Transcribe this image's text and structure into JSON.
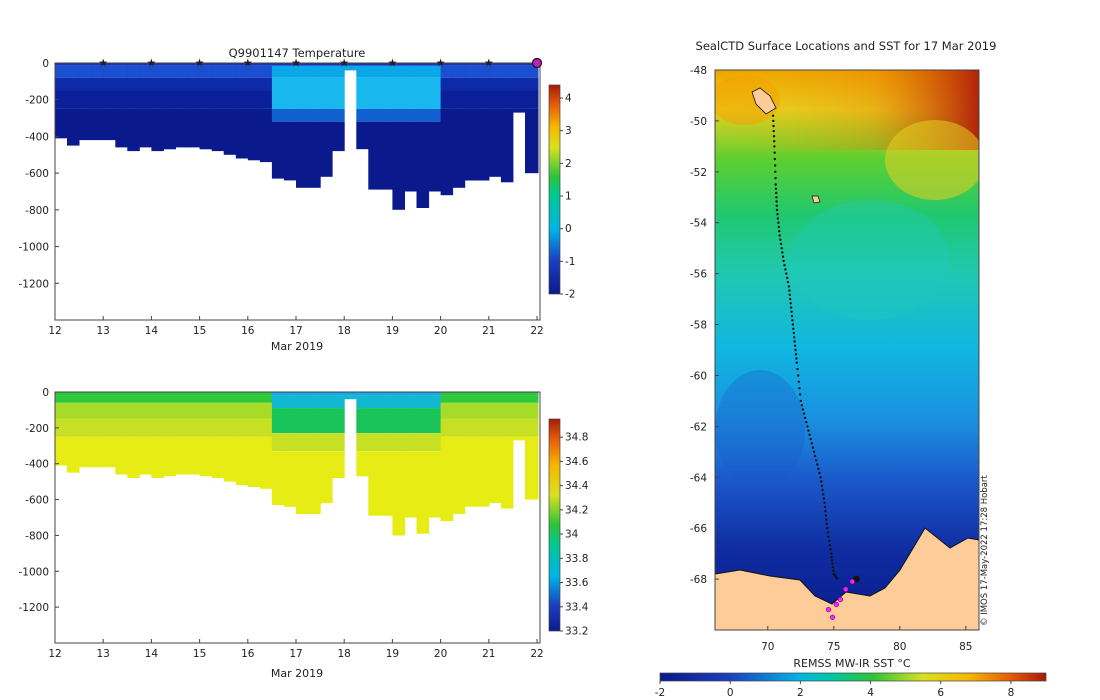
{
  "chart_data": [
    {
      "type": "heatmap",
      "title": "Q9901147  Temperature",
      "xlabel": "Mar 2019",
      "xlim": [
        12,
        22
      ],
      "xticks": [
        "12",
        "13",
        "14",
        "15",
        "16",
        "17",
        "18",
        "19",
        "20",
        "21",
        "22"
      ],
      "ylim": [
        -1400,
        0
      ],
      "yticks": [
        "0",
        "-200",
        "-400",
        "-600",
        "-800",
        "-1000",
        "-1200"
      ],
      "colorbar": {
        "min": -2,
        "max": 4.4,
        "ticks": [
          "4",
          "3",
          "2",
          "1",
          "0",
          "-1",
          "-2"
        ]
      },
      "profile_marker_days": [
        13,
        14,
        15,
        16,
        17,
        18,
        19,
        20,
        21,
        22
      ],
      "profiles": {
        "day": [
          12.0,
          12.25,
          12.5,
          12.75,
          13.0,
          13.25,
          13.5,
          13.75,
          14.0,
          14.25,
          14.5,
          14.75,
          15.0,
          15.25,
          15.5,
          15.75,
          16.0,
          16.25,
          16.5,
          16.75,
          17.0,
          17.25,
          17.5,
          17.75,
          18.0,
          18.25,
          18.5,
          18.75,
          19.0,
          19.25,
          19.5,
          19.75,
          20.0,
          20.25,
          20.5,
          20.75,
          21.0,
          21.25,
          21.5,
          21.75,
          22.0
        ],
        "max_depth": [
          410,
          450,
          420,
          420,
          420,
          460,
          480,
          460,
          480,
          470,
          460,
          460,
          470,
          480,
          500,
          520,
          530,
          540,
          630,
          640,
          680,
          680,
          620,
          480,
          40,
          470,
          690,
          690,
          800,
          700,
          790,
          700,
          720,
          680,
          640,
          640,
          620,
          650,
          270,
          600,
          600
        ]
      }
    },
    {
      "type": "heatmap",
      "title": "",
      "xlabel": "Mar 2019",
      "xlim": [
        12,
        22
      ],
      "xticks": [
        "12",
        "13",
        "14",
        "15",
        "16",
        "17",
        "18",
        "19",
        "20",
        "21",
        "22"
      ],
      "ylim": [
        -1400,
        0
      ],
      "yticks": [
        "0",
        "-200",
        "-400",
        "-600",
        "-800",
        "-1000",
        "-1200"
      ],
      "colorbar": {
        "min": 33.2,
        "max": 34.95,
        "ticks": [
          "34.8",
          "34.6",
          "34.4",
          "34.2",
          "34",
          "33.8",
          "33.6",
          "33.4",
          "33.2"
        ]
      }
    },
    {
      "type": "map",
      "title": "SealCTD Surface Locations and SST for 17 Mar 2019",
      "xlim": [
        66,
        86
      ],
      "ylim": [
        -70,
        -48
      ],
      "xticks": [
        "70",
        "75",
        "80",
        "85"
      ],
      "yticks": [
        "-48",
        "-50",
        "-52",
        "-54",
        "-56",
        "-58",
        "-60",
        "-62",
        "-64",
        "-66",
        "-68"
      ],
      "colorbar": {
        "label": "REMSS MW-IR SST °C",
        "min": -2,
        "max": 9,
        "ticks": [
          "-2",
          "0",
          "2",
          "4",
          "6",
          "8"
        ]
      },
      "credit": "© IMOS 17-May-2022 17:28 Hobart",
      "track": {
        "lon": [
          70.4,
          70.5,
          70.6,
          70.7,
          70.9,
          71.2,
          71.6,
          71.8,
          72.0,
          72.2,
          72.5,
          73.0,
          73.5,
          74.0,
          74.3,
          74.5,
          74.8,
          75.0,
          75.3
        ],
        "lat": [
          -49.8,
          -51.0,
          -52.5,
          -53.5,
          -54.5,
          -55.5,
          -56.5,
          -57.5,
          -58.5,
          -59.5,
          -61.0,
          -62.0,
          -63.0,
          -64.0,
          -65.0,
          -66.0,
          -67.0,
          -67.8,
          -68.0
        ]
      },
      "profile_lon": [
        74.6,
        74.9,
        75.2,
        75.5,
        75.9,
        76.4
      ],
      "profile_lat": [
        -69.2,
        -69.5,
        -69.0,
        -68.8,
        -68.4,
        -68.1
      ]
    }
  ]
}
